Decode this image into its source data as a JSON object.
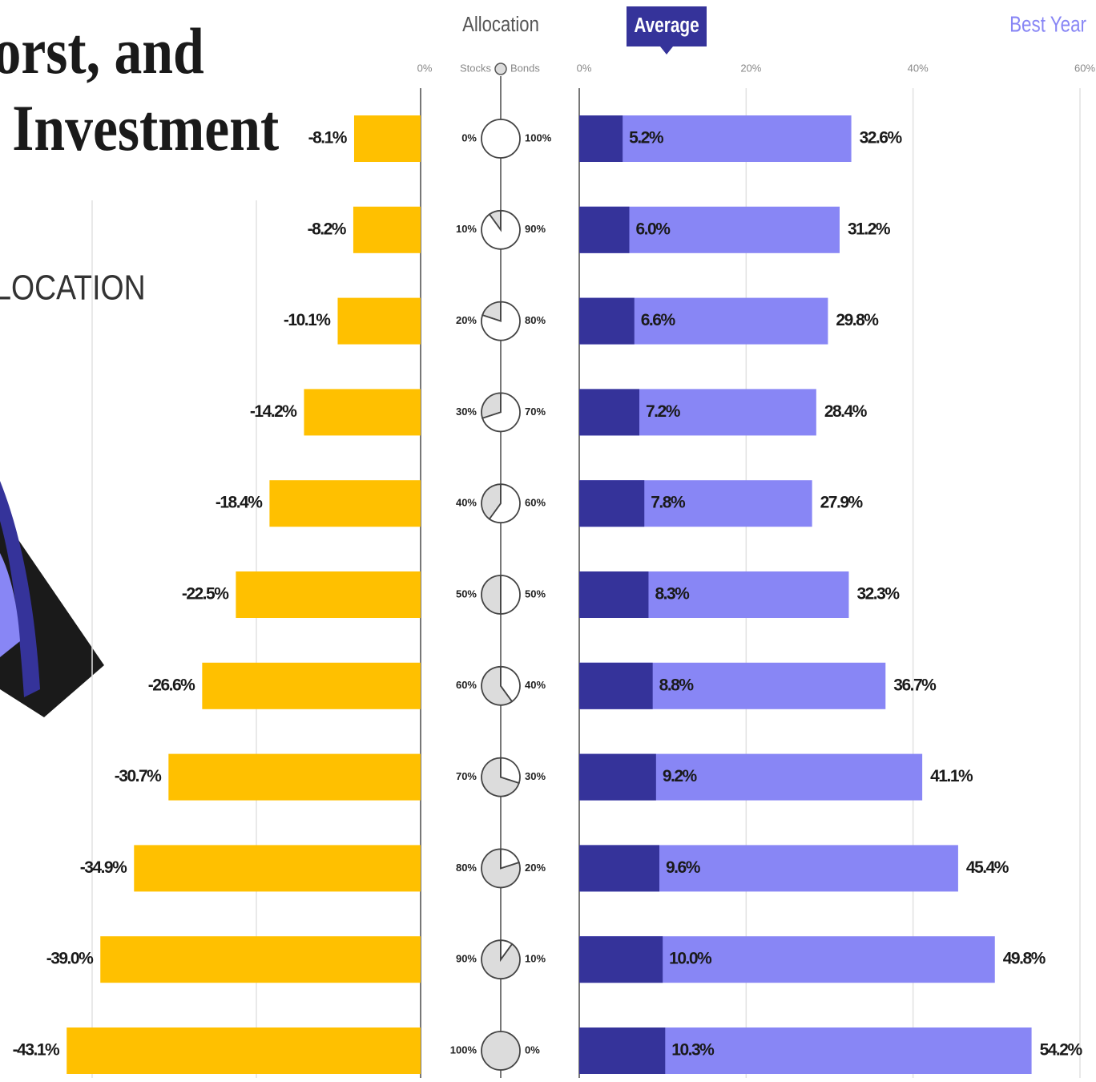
{
  "header": {
    "title_lines": [
      "orst, and",
      "Investment"
    ],
    "subtitle": "LOCATION"
  },
  "chart_data": [
    {
      "type": "worst-bar",
      "values": [
        -8.1,
        -8.2,
        -10.1,
        -14.2,
        -18.4,
        -22.5,
        -26.6,
        -30.7,
        -34.9,
        -39.0,
        -43.1
      ],
      "value_labels": [
        "-8.1%",
        "-8.2%",
        "-10.1%",
        "-14.2%",
        "-18.4%",
        "-22.5%",
        "-26.6%",
        "-30.7%",
        "-34.9%",
        "-39.0%",
        "-43.1%"
      ],
      "color": "#ffc000",
      "xlim": [
        -50,
        0
      ],
      "xticks": [
        {
          "value": -40,
          "label": null
        },
        {
          "value": -20,
          "label": null
        },
        {
          "value": 0,
          "label": "0%"
        }
      ],
      "grid": true
    },
    {
      "type": "allocation",
      "title": "Allocation",
      "series": [
        {
          "name": "Stocks",
          "values": [
            0,
            10,
            20,
            30,
            40,
            50,
            60,
            70,
            80,
            90,
            100
          ],
          "value_labels": [
            "0%",
            "10%",
            "20%",
            "30%",
            "40%",
            "50%",
            "60%",
            "70%",
            "80%",
            "90%",
            "100%"
          ],
          "color": "#dcdcdc"
        },
        {
          "name": "Bonds",
          "values": [
            100,
            90,
            80,
            70,
            60,
            50,
            40,
            30,
            20,
            10,
            0
          ],
          "value_labels": [
            "100%",
            "90%",
            "80%",
            "70%",
            "60%",
            "50%",
            "40%",
            "30%",
            "20%",
            "10%",
            "0%"
          ],
          "color": "#ffffff"
        }
      ]
    },
    {
      "type": "return-bar",
      "series": [
        {
          "name": "Best Year",
          "color": "#8886f5",
          "values": [
            32.6,
            31.2,
            29.8,
            28.4,
            27.9,
            32.3,
            36.7,
            41.1,
            45.4,
            49.8,
            54.2
          ],
          "value_labels": [
            "32.6%",
            "31.2%",
            "29.8%",
            "28.4%",
            "27.9%",
            "32.3%",
            "36.7%",
            "41.1%",
            "45.4%",
            "49.8%",
            "54.2%"
          ]
        },
        {
          "name": "Average",
          "color": "#35339a",
          "values": [
            5.2,
            6.0,
            6.6,
            7.2,
            7.8,
            8.3,
            8.8,
            9.2,
            9.6,
            10.0,
            10.3
          ],
          "value_labels": [
            "5.2%",
            "6.0%",
            "6.6%",
            "7.2%",
            "7.8%",
            "8.3%",
            "8.8%",
            "9.2%",
            "9.6%",
            "10.0%",
            "10.3%"
          ]
        }
      ],
      "xlim": [
        0,
        60
      ],
      "xticks": [
        {
          "value": 0,
          "label": "0%"
        },
        {
          "value": 20,
          "label": "20%"
        },
        {
          "value": 40,
          "label": "40%"
        },
        {
          "value": 60,
          "label": "60%"
        }
      ],
      "grid": true
    }
  ]
}
